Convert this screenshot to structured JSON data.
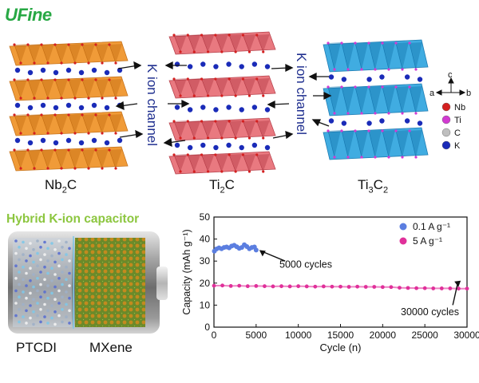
{
  "logo": {
    "text": "UFine"
  },
  "structures": {
    "left": {
      "base": "Nb",
      "sub": "2",
      "tail": "C"
    },
    "middle": {
      "base": "Ti",
      "sub": "2",
      "tail": "C"
    },
    "right": {
      "base": "Ti",
      "sub": "3",
      "tail": "C",
      "sub2": "2"
    }
  },
  "channel_label_left": "K ion channel",
  "channel_label_right": "K ion channel",
  "axes_key": {
    "c": "c",
    "a": "a",
    "b": "b"
  },
  "atom_legend": [
    {
      "symbol": "Nb",
      "color": "#d42020"
    },
    {
      "symbol": "Ti",
      "color": "#d23bd2"
    },
    {
      "symbol": "C",
      "color": "#bfbfbf"
    },
    {
      "symbol": "K",
      "color": "#1a2bb8"
    }
  ],
  "capacitor": {
    "title": "Hybrid K-ion capacitor",
    "anode_label": "PTCDI",
    "cathode_label": "MXene"
  },
  "chart_data": {
    "type": "scatter",
    "title": "",
    "xlabel": "Cycle (n)",
    "ylabel": "Capacity (mAh g⁻¹)",
    "xlim": [
      0,
      30000
    ],
    "ylim": [
      0,
      50
    ],
    "xticks": [
      0,
      5000,
      10000,
      15000,
      20000,
      25000,
      30000
    ],
    "yticks": [
      0,
      10,
      20,
      30,
      40,
      50
    ],
    "series": [
      {
        "name": "0.1 A g⁻¹",
        "color": "#5b7ee0",
        "x": [
          50,
          300,
          600,
          900,
          1200,
          1500,
          1800,
          2100,
          2400,
          2700,
          3000,
          3300,
          3600,
          3900,
          4200,
          4500,
          4800,
          5000
        ],
        "y": [
          34.5,
          35.5,
          36.0,
          35.6,
          36.2,
          36.4,
          36.0,
          36.8,
          37.2,
          36.5,
          35.8,
          36.2,
          37.4,
          36.6,
          35.6,
          36.2,
          36.4,
          35.0
        ]
      },
      {
        "name": "5 A g⁻¹",
        "color": "#e0309a",
        "x": [
          0,
          1000,
          2000,
          3000,
          4000,
          5000,
          6000,
          7000,
          8000,
          9000,
          10000,
          11000,
          12000,
          13000,
          14000,
          15000,
          16000,
          17000,
          18000,
          19000,
          20000,
          21000,
          22000,
          23000,
          24000,
          25000,
          26000,
          27000,
          28000,
          29000,
          30000
        ],
        "y": [
          18.8,
          18.9,
          18.7,
          18.8,
          18.6,
          18.7,
          18.6,
          18.5,
          18.6,
          18.5,
          18.6,
          18.5,
          18.4,
          18.5,
          18.4,
          18.4,
          18.3,
          18.4,
          18.3,
          18.3,
          18.2,
          18.2,
          17.9,
          17.8,
          17.7,
          17.7,
          17.6,
          17.6,
          17.6,
          17.5,
          17.5
        ]
      }
    ],
    "annotations": [
      {
        "text": "5000 cycles",
        "x": 5000,
        "y": 35
      },
      {
        "text": "30000 cycles",
        "x": 28500,
        "y": 17.5
      }
    ],
    "legend_position": "top-right"
  }
}
